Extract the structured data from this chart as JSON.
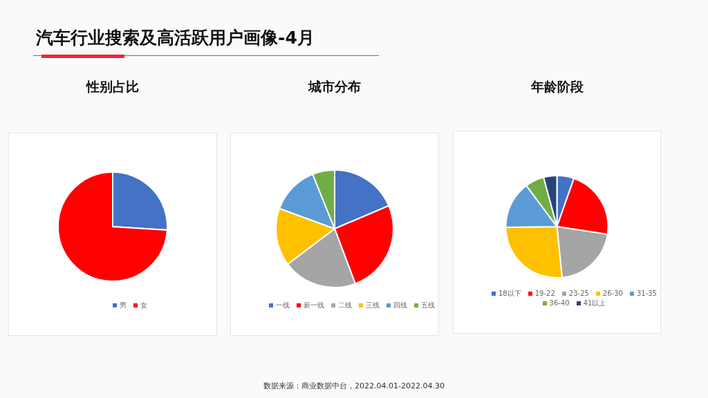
{
  "chart_data": [
    {
      "type": "pie",
      "title": "汽车行业搜索及高活跃用户画像-4月",
      "subtitle": "性别占比",
      "categories": [
        "男",
        "女"
      ],
      "values": [
        26,
        74
      ],
      "colors": [
        "#4472c4",
        "#ff0000"
      ],
      "legend": "bottom"
    },
    {
      "type": "pie",
      "title": "城市分布",
      "categories": [
        "一线",
        "新一线",
        "二线",
        "三线",
        "四线",
        "五线"
      ],
      "values": [
        18.6,
        25.7,
        20.4,
        15.9,
        13.3,
        6.1
      ],
      "colors": [
        "#4472c4",
        "#ff0000",
        "#a5a5a5",
        "#ffc000",
        "#5b9bd5",
        "#70ad47"
      ],
      "legend": "bottom"
    },
    {
      "type": "pie",
      "title": "年龄阶段",
      "categories": [
        "18以下",
        "19-22",
        "23-25",
        "26-30",
        "31-35",
        "36-40",
        "41以上"
      ],
      "values": [
        5.4,
        22.0,
        21.0,
        26.4,
        15.0,
        6.0,
        4.2
      ],
      "colors": [
        "#4472c4",
        "#ff0000",
        "#a5a5a5",
        "#ffc000",
        "#5b9bd5",
        "#70ad47",
        "#264478"
      ],
      "legend": "bottom",
      "annotations": [
        "数据来源：商业数据中台，2022.04.01-2022.04.30"
      ]
    }
  ]
}
